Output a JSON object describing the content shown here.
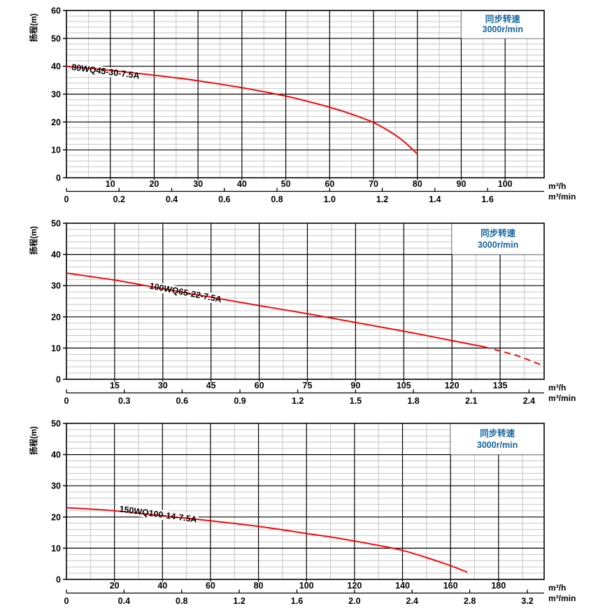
{
  "page": {
    "background": "#ffffff",
    "text_color": "#000000",
    "accent_red": "#f50000",
    "accent_blue": "#1565a0",
    "grid_major_color": "#000000",
    "grid_minor_color": "#c6c6c6"
  },
  "units": {
    "flow_per_hour": "m³/h",
    "flow_per_minute": "m³/min",
    "head_axis_label": "扬程(m)"
  },
  "speed_note": {
    "line1": "同步转速",
    "line2": "3000r/min"
  },
  "chart_data": [
    {
      "type": "line",
      "model": "80WQ45-30-7.5A",
      "ylabel": "扬程(m)",
      "ylim": [
        0,
        60
      ],
      "y_major": 10,
      "y_minor": 2,
      "y_tick_labels": [
        "0",
        "10",
        "20",
        "30",
        "40",
        "50",
        "60"
      ],
      "xlim_m3h": [
        0,
        108.9
      ],
      "x_major": 10,
      "x_minor": 5,
      "x_ticks_m3h": [
        "10",
        "20",
        "30",
        "40",
        "50",
        "60",
        "70",
        "80",
        "90",
        "100"
      ],
      "x_ticks_m3min": [
        "0",
        "0.2",
        "0.4",
        "0.6",
        "0.8",
        "1.0",
        "1.2",
        "1.4",
        "1.6"
      ],
      "min_to_h_ratio": 60,
      "box_from_m3h": 90,
      "curve_solid": [
        [
          0,
          40
        ],
        [
          10,
          38.5
        ],
        [
          20,
          36.8
        ],
        [
          30,
          34.8
        ],
        [
          40,
          32.3
        ],
        [
          50,
          29.3
        ],
        [
          55,
          27.4
        ],
        [
          60,
          25.3
        ],
        [
          65,
          22.8
        ],
        [
          70,
          19.8
        ],
        [
          74,
          16.3
        ],
        [
          77,
          12.9
        ],
        [
          80,
          8.5
        ]
      ],
      "curve_dashed": [],
      "label_anchor": {
        "x_m3h": 1.1,
        "y_m": 38.7,
        "angle_deg": 7.5
      }
    },
    {
      "type": "line",
      "model": "100WQ65-22-7.5A",
      "ylabel": "扬程(m)",
      "ylim": [
        0,
        50
      ],
      "y_major": 10,
      "y_minor": 2,
      "y_tick_labels": [
        "0",
        "10",
        "20",
        "30",
        "40",
        "50"
      ],
      "xlim_m3h": [
        0,
        148.7
      ],
      "x_major": 15,
      "x_minor": 7.5,
      "x_ticks_m3h": [
        "15",
        "30",
        "45",
        "60",
        "75",
        "90",
        "105",
        "120",
        "135"
      ],
      "x_ticks_m3min": [
        "0",
        "0.3",
        "0.6",
        "0.9",
        "1.2",
        "1.5",
        "1.8",
        "2.1",
        "2.4"
      ],
      "min_to_h_ratio": 60,
      "box_from_m3h": 120,
      "curve_solid": [
        [
          0,
          34
        ],
        [
          15,
          31.8
        ],
        [
          30,
          29
        ],
        [
          45,
          26.3
        ],
        [
          60,
          23.6
        ],
        [
          75,
          21
        ],
        [
          90,
          18.2
        ],
        [
          105,
          15.4
        ],
        [
          120,
          12.4
        ],
        [
          125,
          11.4
        ],
        [
          130,
          10.4
        ]
      ],
      "curve_dashed": [
        [
          130,
          10.4
        ],
        [
          136,
          8.8
        ],
        [
          141,
          7.3
        ],
        [
          147.5,
          4.7
        ]
      ],
      "label_anchor": {
        "x_m3h": 25.7,
        "y_m": 29.1,
        "angle_deg": 11
      }
    },
    {
      "type": "line",
      "model": "150WQ100-14-7.5A",
      "ylabel": "扬程(m)",
      "ylim": [
        0,
        50
      ],
      "y_major": 10,
      "y_minor": 2,
      "y_tick_labels": [
        "0",
        "10",
        "20",
        "30",
        "40",
        "50"
      ],
      "xlim_m3h": [
        0,
        199
      ],
      "x_major": 20,
      "x_minor": 10,
      "x_ticks_m3h": [
        "20",
        "40",
        "60",
        "80",
        "100",
        "120",
        "140",
        "160",
        "180"
      ],
      "x_ticks_m3min": [
        "0",
        "0.4",
        "0.8",
        "1.2",
        "1.6",
        "2.0",
        "2.4",
        "2.8",
        "3.2"
      ],
      "min_to_h_ratio": 60,
      "box_from_m3h": 160,
      "curve_solid": [
        [
          0,
          23
        ],
        [
          20,
          22
        ],
        [
          40,
          20.4
        ],
        [
          60,
          18.8
        ],
        [
          80,
          17
        ],
        [
          100,
          14.7
        ],
        [
          110,
          13.6
        ],
        [
          120,
          12.3
        ],
        [
          130,
          10.9
        ],
        [
          140,
          9.3
        ],
        [
          150,
          7
        ],
        [
          160,
          4.4
        ],
        [
          167,
          2.3
        ]
      ],
      "curve_dashed": [],
      "label_anchor": {
        "x_m3h": 21.9,
        "y_m": 21.7,
        "angle_deg": 8
      }
    }
  ]
}
